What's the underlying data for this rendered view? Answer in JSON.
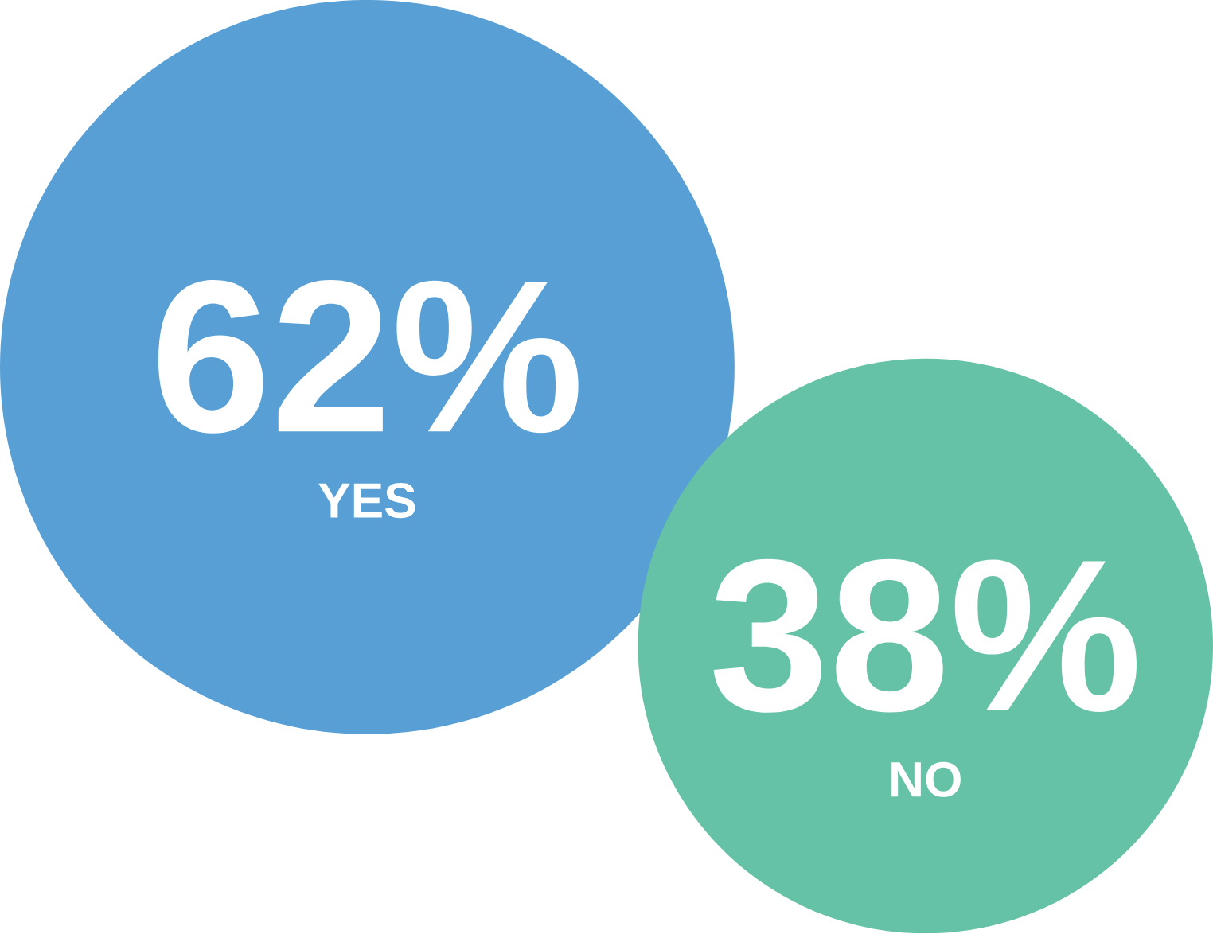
{
  "chart_data": {
    "type": "other",
    "categories": [
      "YES",
      "NO"
    ],
    "values": [
      62,
      38
    ],
    "value_labels": [
      "62%",
      "38%"
    ],
    "colors": [
      "#579fd4",
      "#66c2a7"
    ]
  }
}
